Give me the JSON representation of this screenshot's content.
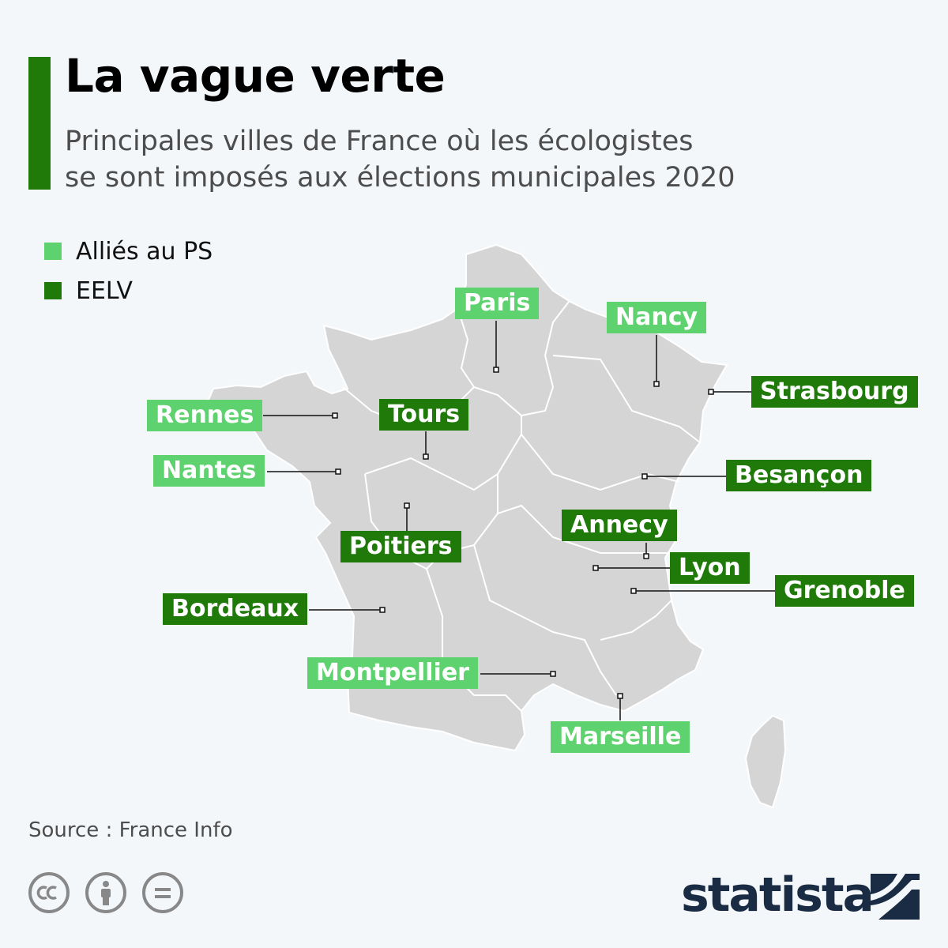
{
  "header": {
    "title": "La vague verte",
    "subtitle_line1": "Principales villes de France où les écologistes",
    "subtitle_line2": "se sont imposés aux élections municipales 2020"
  },
  "legend": {
    "items": [
      {
        "label": "Alliés au PS",
        "color": "#5fd270"
      },
      {
        "label": "EELV",
        "color": "#1f7a0a"
      }
    ]
  },
  "colors": {
    "accent": "#1f7a0a",
    "allies_ps": "#5fd270",
    "eelv": "#1f7a0a",
    "map_fill": "#d5d5d5",
    "map_border": "#ffffff",
    "background": "#f4f7fa"
  },
  "cities": [
    {
      "name": "Paris",
      "group": "Alliés au PS"
    },
    {
      "name": "Nancy",
      "group": "Alliés au PS"
    },
    {
      "name": "Strasbourg",
      "group": "EELV"
    },
    {
      "name": "Rennes",
      "group": "Alliés au PS"
    },
    {
      "name": "Tours",
      "group": "EELV"
    },
    {
      "name": "Nantes",
      "group": "Alliés au PS"
    },
    {
      "name": "Besançon",
      "group": "EELV"
    },
    {
      "name": "Annecy",
      "group": "EELV"
    },
    {
      "name": "Poitiers",
      "group": "EELV"
    },
    {
      "name": "Lyon",
      "group": "EELV"
    },
    {
      "name": "Grenoble",
      "group": "EELV"
    },
    {
      "name": "Bordeaux",
      "group": "EELV"
    },
    {
      "name": "Montpellier",
      "group": "Alliés au PS"
    },
    {
      "name": "Marseille",
      "group": "Alliés au PS"
    }
  ],
  "footer": {
    "source": "Source : France Info",
    "brand": "statista",
    "license_icons": [
      "creative-commons-icon",
      "attribution-icon",
      "no-derivatives-icon"
    ]
  }
}
